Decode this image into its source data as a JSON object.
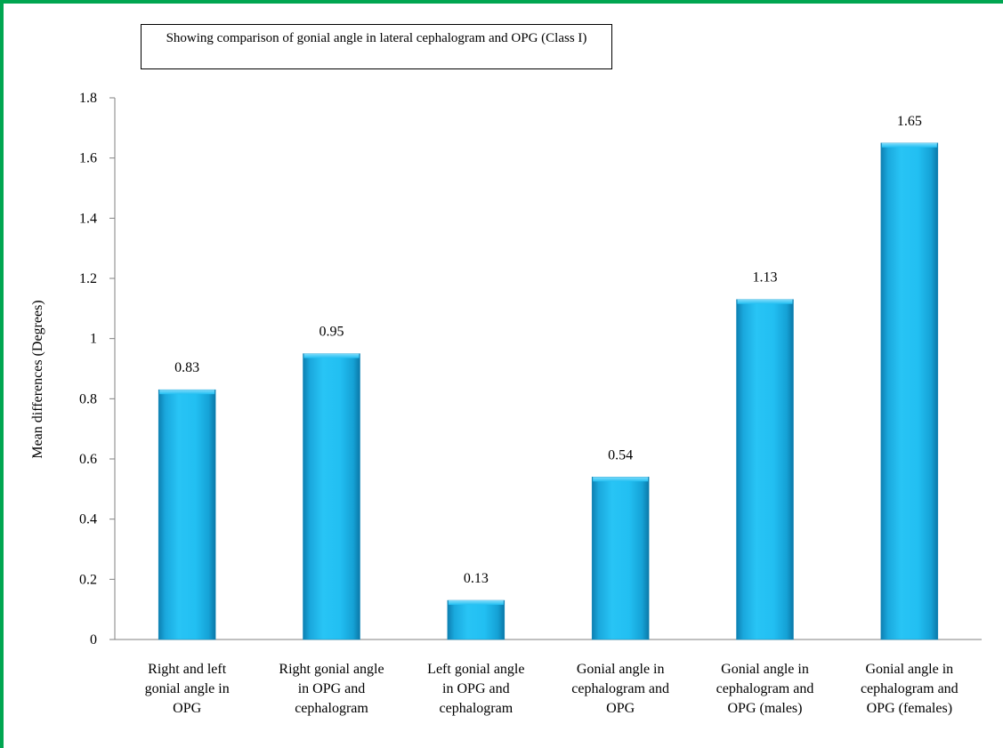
{
  "chart_data": {
    "type": "bar",
    "title": "Showing comparison of gonial angle in lateral cephalogram and OPG (Class I)",
    "ylabel": "Mean differences (Degrees)",
    "xlabel": "",
    "ylim": [
      0,
      1.8
    ],
    "yticks": [
      "0",
      "0.2",
      "0.4",
      "0.6",
      "0.8",
      "1",
      "1.2",
      "1.4",
      "1.6",
      "1.8"
    ],
    "categories": [
      [
        "Right and left",
        "gonial angle in",
        "OPG"
      ],
      [
        "Right gonial angle",
        "in OPG and",
        "cephalogram"
      ],
      [
        "Left gonial angle",
        "in OPG and",
        "cephalogram"
      ],
      [
        "Gonial angle in",
        "cephalogram and",
        "OPG"
      ],
      [
        "Gonial angle in",
        "cephalogram and",
        "OPG (males)"
      ],
      [
        "Gonial angle in",
        "cephalogram and",
        "OPG (females)"
      ]
    ],
    "values": [
      0.83,
      0.95,
      0.13,
      0.54,
      1.13,
      1.65
    ],
    "data_labels": [
      "0.83",
      "0.95",
      "0.13",
      "0.54",
      "1.13",
      "1.65"
    ],
    "bar_color": "#19b5ea",
    "grid": false,
    "legend": "none"
  },
  "frame_color": "#00a651"
}
